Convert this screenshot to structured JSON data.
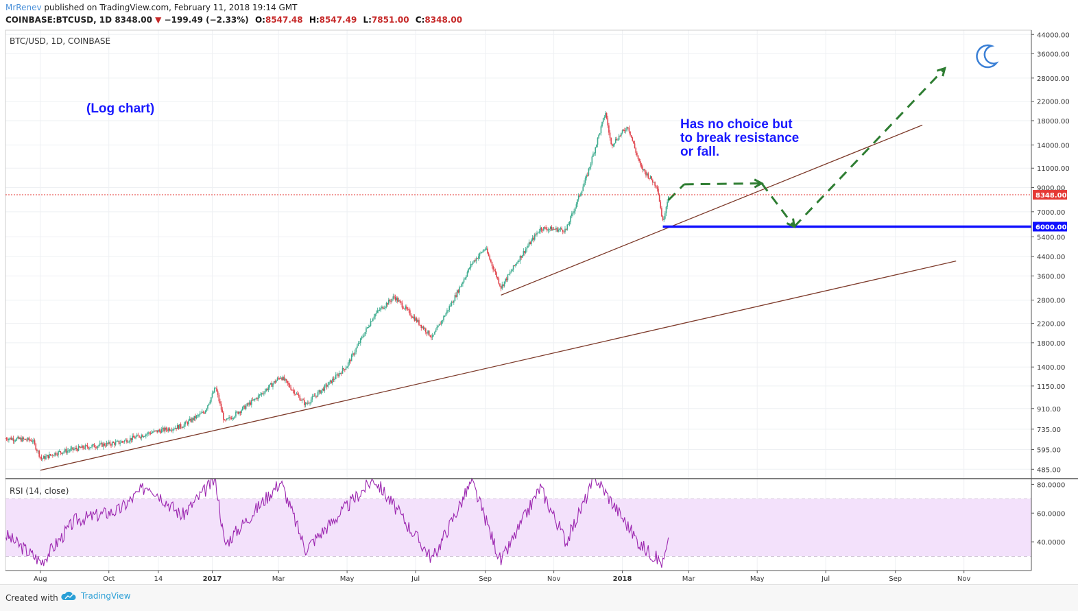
{
  "header": {
    "author": "MrRenev",
    "published": "published on TradingView.com, February 11, 2018 19:14 GMT",
    "symbol": "COINBASE:BTCUSD, 1D",
    "last": "8348.00",
    "change": "−199.49 (−2.33%)",
    "o_label": "O:",
    "o": "8547.48",
    "h_label": "H:",
    "h": "8547.49",
    "l_label": "L:",
    "l": "7851.00",
    "c_label": "C:",
    "c": "8348.00"
  },
  "pane_title": "BTC/USD, 1D, COINBASE",
  "rsi_title": "RSI (14, close)",
  "annotations": {
    "log_note": "(Log chart)",
    "thesis": [
      "Has no choice but",
      "to break resistance",
      "or fall."
    ]
  },
  "footer": {
    "created": "Created with",
    "brand": "TradingView"
  },
  "colors": {
    "up": "#3cab8e",
    "down": "#e0414a",
    "trend": "#7d3a2a",
    "support": "#1010ff",
    "arrow": "#2e7d32",
    "annot": "#1a1aff",
    "rsi": "#9c27b0",
    "rsi_band": "#f3e1fb",
    "price_line": "#e53935"
  },
  "icons": {
    "moon": "crescent-moon-icon",
    "brand_logo": "tradingview-cloud-icon"
  },
  "chart_data": {
    "type": "candlestick",
    "scale": "log",
    "symbol": "BTC/USD",
    "interval": "1D",
    "exchange": "COINBASE",
    "x_ticks": [
      "Aug",
      "Oct",
      "14",
      "2017",
      "Mar",
      "May",
      "Jul",
      "Sep",
      "Nov",
      "2018",
      "Mar",
      "May",
      "Jul",
      "Sep",
      "Nov"
    ],
    "y_ticks": [
      "44000.00",
      "36000.00",
      "28000.00",
      "22000.00",
      "18000.00",
      "14000.00",
      "11000.00",
      "9000.00",
      "7000.00",
      "5400.00",
      "4400.00",
      "3600.00",
      "2800.00",
      "2200.00",
      "1800.00",
      "1400.00",
      "1150.00",
      "910.00",
      "735.00",
      "595.00",
      "485.00"
    ],
    "y_tick_values": [
      44000,
      36000,
      28000,
      22000,
      18000,
      14000,
      11000,
      9000,
      7000,
      5400,
      4400,
      3600,
      2800,
      2200,
      1800,
      1400,
      1150,
      910,
      735,
      595,
      485
    ],
    "ylim": [
      440,
      46000
    ],
    "last_price_label": "8348.00",
    "last_price": 8348,
    "support_label": "6000.00",
    "support": 6000,
    "price_path": [
      {
        "d": "2016-07-01",
        "p": 670
      },
      {
        "d": "2016-07-25",
        "p": 655
      },
      {
        "d": "2016-08-02",
        "p": 540
      },
      {
        "d": "2016-08-15",
        "p": 575
      },
      {
        "d": "2016-09-10",
        "p": 610
      },
      {
        "d": "2016-10-10",
        "p": 640
      },
      {
        "d": "2016-11-05",
        "p": 705
      },
      {
        "d": "2016-12-05",
        "p": 760
      },
      {
        "d": "2016-12-25",
        "p": 880
      },
      {
        "d": "2017-01-04",
        "p": 1130
      },
      {
        "d": "2017-01-12",
        "p": 790
      },
      {
        "d": "2017-02-08",
        "p": 1000
      },
      {
        "d": "2017-03-03",
        "p": 1270
      },
      {
        "d": "2017-03-25",
        "p": 950
      },
      {
        "d": "2017-04-15",
        "p": 1180
      },
      {
        "d": "2017-05-01",
        "p": 1420
      },
      {
        "d": "2017-05-25",
        "p": 2400
      },
      {
        "d": "2017-06-12",
        "p": 2900
      },
      {
        "d": "2017-07-16",
        "p": 1900
      },
      {
        "d": "2017-08-05",
        "p": 2900
      },
      {
        "d": "2017-08-20",
        "p": 4100
      },
      {
        "d": "2017-09-01",
        "p": 4800
      },
      {
        "d": "2017-09-15",
        "p": 3200
      },
      {
        "d": "2017-10-01",
        "p": 4300
      },
      {
        "d": "2017-10-20",
        "p": 5900
      },
      {
        "d": "2017-11-12",
        "p": 5800
      },
      {
        "d": "2017-11-30",
        "p": 10000
      },
      {
        "d": "2017-12-17",
        "p": 19600
      },
      {
        "d": "2017-12-22",
        "p": 14000
      },
      {
        "d": "2018-01-06",
        "p": 17000
      },
      {
        "d": "2018-01-17",
        "p": 11200
      },
      {
        "d": "2018-02-01",
        "p": 9100
      },
      {
        "d": "2018-02-06",
        "p": 6300
      },
      {
        "d": "2018-02-11",
        "p": 8348
      }
    ],
    "trendlines": [
      {
        "name": "long-term support",
        "from": {
          "d": "2016-08-01",
          "p": 480
        },
        "to": {
          "d": "2018-10-25",
          "p": 4200
        }
      },
      {
        "name": "rising trendline",
        "from": {
          "d": "2017-09-15",
          "p": 2950
        },
        "to": {
          "d": "2018-09-25",
          "p": 17200
        }
      }
    ],
    "projection": [
      {
        "d": "2018-02-11",
        "p": 7900
      },
      {
        "d": "2018-02-25",
        "p": 9300
      },
      {
        "d": "2018-05-05",
        "p": 9400
      },
      {
        "d": "2018-06-03",
        "p": 6000
      },
      {
        "d": "2018-10-15",
        "p": 31000
      }
    ],
    "rsi": {
      "y_ticks": [
        "80.0000",
        "60.0000",
        "40.0000"
      ],
      "y_tick_values": [
        80,
        60,
        40
      ],
      "ylim": [
        20,
        84
      ],
      "bands": [
        70,
        30
      ],
      "path": [
        {
          "d": "2016-07-01",
          "v": 45
        },
        {
          "d": "2016-08-02",
          "v": 26
        },
        {
          "d": "2016-09-01",
          "v": 55
        },
        {
          "d": "2016-10-10",
          "v": 62
        },
        {
          "d": "2016-11-05",
          "v": 80
        },
        {
          "d": "2016-12-05",
          "v": 58
        },
        {
          "d": "2017-01-04",
          "v": 84
        },
        {
          "d": "2017-01-12",
          "v": 38
        },
        {
          "d": "2017-03-03",
          "v": 82
        },
        {
          "d": "2017-03-25",
          "v": 35
        },
        {
          "d": "2017-05-25",
          "v": 84
        },
        {
          "d": "2017-07-16",
          "v": 28
        },
        {
          "d": "2017-08-20",
          "v": 82
        },
        {
          "d": "2017-09-15",
          "v": 26
        },
        {
          "d": "2017-10-20",
          "v": 78
        },
        {
          "d": "2017-11-12",
          "v": 40
        },
        {
          "d": "2017-12-08",
          "v": 85
        },
        {
          "d": "2018-01-17",
          "v": 38
        },
        {
          "d": "2018-02-06",
          "v": 25
        },
        {
          "d": "2018-02-11",
          "v": 39
        }
      ]
    }
  }
}
